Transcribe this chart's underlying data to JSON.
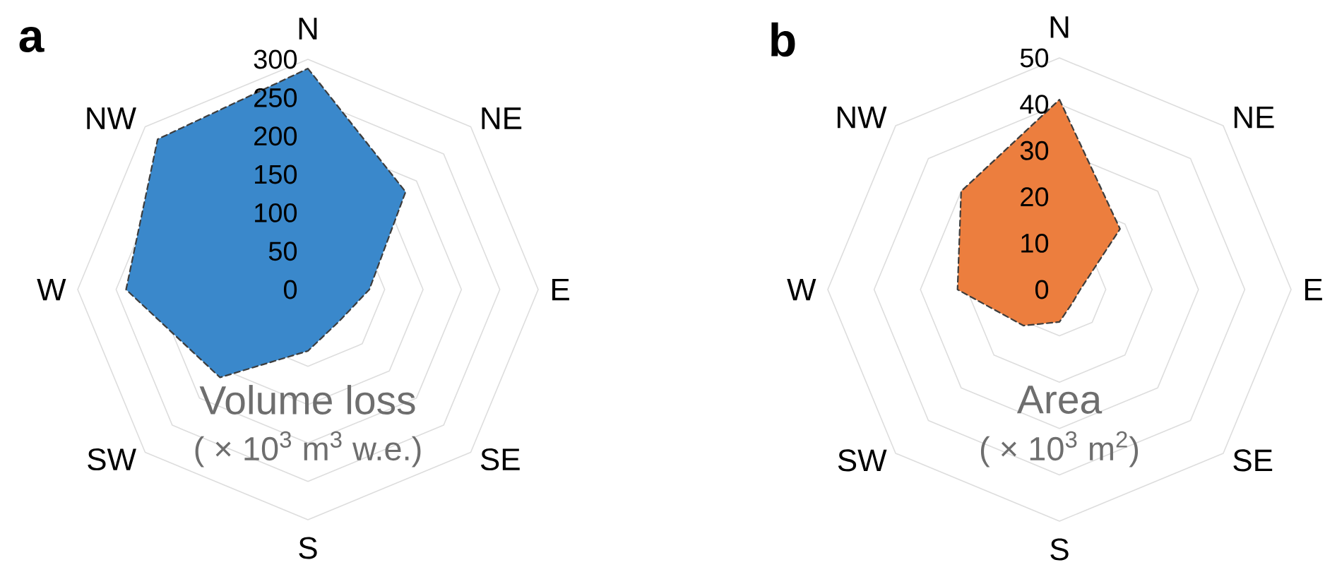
{
  "chart_data": [
    {
      "type": "radar",
      "title": "a",
      "ylabel": "Volume loss",
      "annotations": [
        "( × 10$^{3}$ m$^{3}$ w.e.)"
      ],
      "categories": [
        "N",
        "NE",
        "E",
        "SE",
        "S",
        "SW",
        "W",
        "NW"
      ],
      "series": [
        {
          "color": "#3a88cb",
          "values": [
            288,
            180,
            80,
            58,
            80,
            162,
            237,
            277
          ]
        }
      ],
      "ylim": [
        0,
        300
      ],
      "yticks": [
        0,
        50,
        100,
        150,
        200,
        250,
        300
      ],
      "grid": true,
      "line_style": "dashed"
    },
    {
      "type": "radar",
      "title": "b",
      "ylabel": "Area",
      "annotations": [
        "( × 10$^{3}$ m$^{2}$)"
      ],
      "categories": [
        "N",
        "NE",
        "E",
        "SE",
        "S",
        "SW",
        "W",
        "NW"
      ],
      "series": [
        {
          "color": "#ec7e3e",
          "values": [
            41,
            18.5,
            4.5,
            4,
            7,
            11,
            22,
            30
          ]
        }
      ],
      "ylim": [
        0,
        50
      ],
      "yticks": [
        0,
        10,
        20,
        30,
        40,
        50
      ],
      "grid": true,
      "line_style": "dashed"
    }
  ]
}
